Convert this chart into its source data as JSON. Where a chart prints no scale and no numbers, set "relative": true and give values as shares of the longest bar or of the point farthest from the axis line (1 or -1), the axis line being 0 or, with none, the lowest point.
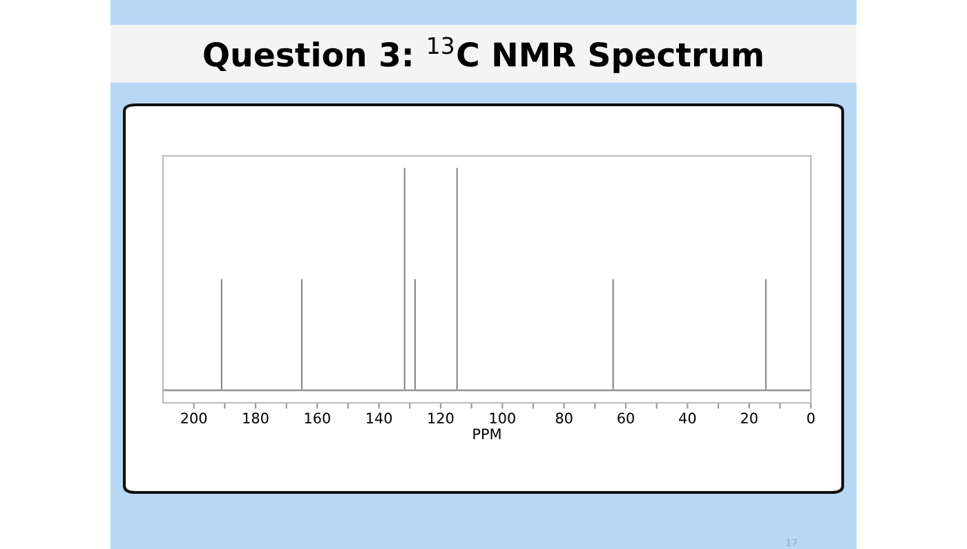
{
  "chart_data": {
    "type": "bar",
    "title": "Question 3: $^{13}$C NMR Spectrum",
    "xlabel": "PPM",
    "relative": true,
    "x": [
      191,
      165,
      131.7,
      128.3,
      114.7,
      64.1,
      14.6
    ],
    "values": [
      0.5,
      0.5,
      1,
      0.5,
      1,
      0.5,
      0.5
    ],
    "color": "#808080",
    "xlim": [
      210,
      0
    ],
    "xticks": [
      200,
      {
        "value": 190,
        "label": null
      },
      180,
      {
        "value": 170,
        "label": null
      },
      160,
      {
        "value": 150,
        "label": null
      },
      140,
      {
        "value": 130,
        "label": null
      },
      120,
      {
        "value": 110,
        "label": null
      },
      100,
      {
        "value": 90,
        "label": null
      },
      80,
      {
        "value": 70,
        "label": null
      },
      60,
      {
        "value": 50,
        "label": null
      },
      40,
      {
        "value": 30,
        "label": null
      },
      20,
      {
        "value": 10,
        "label": null
      },
      0
    ],
    "grid": false,
    "legend": false,
    "annotations": [
      "17"
    ]
  }
}
